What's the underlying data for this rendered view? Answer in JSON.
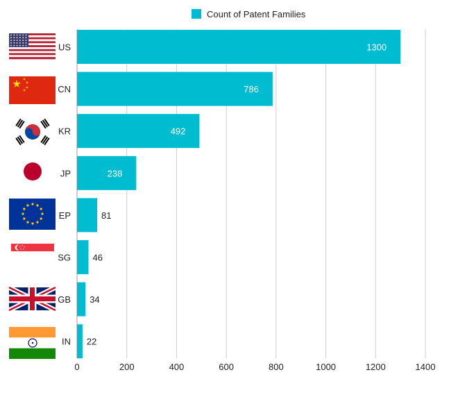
{
  "chart_data": {
    "type": "bar",
    "orientation": "horizontal",
    "categories": [
      "US",
      "CN",
      "KR",
      "JP",
      "EP",
      "SG",
      "GB",
      "IN"
    ],
    "series": [
      {
        "name": "Count of Patent Families",
        "values": [
          1300,
          786,
          492,
          238,
          81,
          46,
          34,
          22
        ]
      }
    ],
    "x_ticks": [
      0,
      200,
      400,
      600,
      800,
      1000,
      1200,
      1400
    ],
    "xlim": [
      0,
      1400
    ],
    "grid": "vertical",
    "legend": "top-center",
    "bar_color": "#00bcd0",
    "flags": [
      "us-flag",
      "cn-flag",
      "kr-flag",
      "jp-flag",
      "eu-flag",
      "sg-flag",
      "gb-flag",
      "in-flag"
    ]
  }
}
